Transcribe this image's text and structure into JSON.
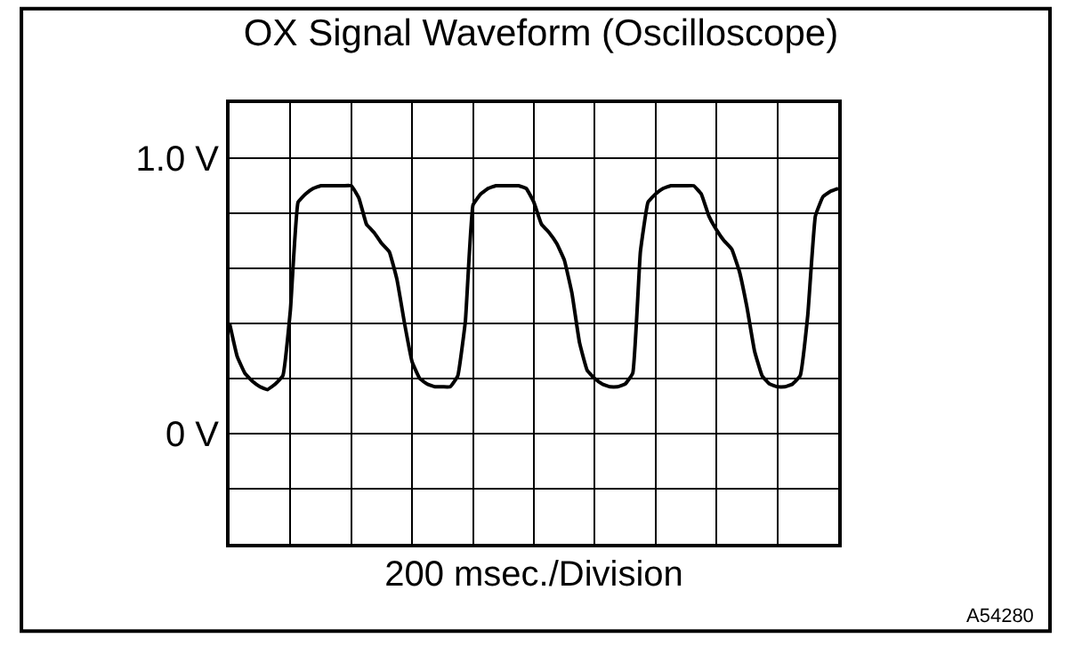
{
  "chart_data": {
    "type": "line",
    "title": "OX Signal Waveform (Oscilloscope)",
    "xlabel": "200 msec./Division",
    "annotations": [
      "A54280"
    ],
    "categories": [
      null,
      null,
      null,
      null,
      null,
      null,
      null,
      null,
      null,
      null,
      null,
      null,
      null,
      null,
      null,
      null,
      null,
      null,
      null,
      null,
      null,
      null,
      null,
      null,
      null,
      null,
      null,
      null,
      null,
      null,
      null,
      null,
      null,
      null,
      null,
      null,
      null,
      null,
      null,
      null,
      null,
      null,
      null,
      null,
      null,
      null,
      null,
      null,
      null,
      null,
      null,
      null,
      null,
      null,
      null,
      null,
      null,
      null,
      null,
      null,
      null,
      null,
      null,
      null,
      null,
      null,
      null,
      null,
      null,
      null,
      null,
      null,
      null,
      null,
      null,
      null,
      null,
      null,
      null,
      null,
      null
    ],
    "series": [
      {
        "color": "#000000",
        "values": [
          0.4,
          0.28,
          0.22,
          0.19,
          0.17,
          0.16,
          0.18,
          0.21,
          0.45,
          0.84,
          0.87,
          0.89,
          0.9,
          0.9,
          0.9,
          0.9,
          0.9,
          0.855,
          0.76,
          0.73,
          0.69,
          0.66,
          0.56,
          0.4,
          0.26,
          0.2,
          0.18,
          0.17,
          0.17,
          0.17,
          0.21,
          0.41,
          0.83,
          0.87,
          0.89,
          0.9,
          0.9,
          0.9,
          0.9,
          0.89,
          0.84,
          0.76,
          0.73,
          0.69,
          0.63,
          0.51,
          0.33,
          0.23,
          0.2,
          0.18,
          0.17,
          0.17,
          0.18,
          0.22,
          0.66,
          0.84,
          0.87,
          0.89,
          0.9,
          0.9,
          0.9,
          0.9,
          0.87,
          0.79,
          0.74,
          0.7,
          0.67,
          0.59,
          0.46,
          0.3,
          0.21,
          0.18,
          0.17,
          0.17,
          0.18,
          0.21,
          0.43,
          0.79,
          0.86,
          0.88,
          0.89
        ]
      }
    ],
    "ylim": [
      -0.4,
      1.2
    ],
    "yticks": [
      {
        "value": -0.4,
        "label": null
      },
      {
        "value": -0.2,
        "label": null
      },
      {
        "value": 0,
        "label": "0 V"
      },
      {
        "value": 0.2,
        "label": null
      },
      {
        "value": 0.4,
        "label": null
      },
      {
        "value": 0.6,
        "label": null
      },
      {
        "value": 0.8,
        "label": null
      },
      {
        "value": 1.0,
        "label": "1.0 V"
      },
      {
        "value": 1.2,
        "label": null
      }
    ],
    "grid": true,
    "marker": "none",
    "line_style": "solid"
  }
}
